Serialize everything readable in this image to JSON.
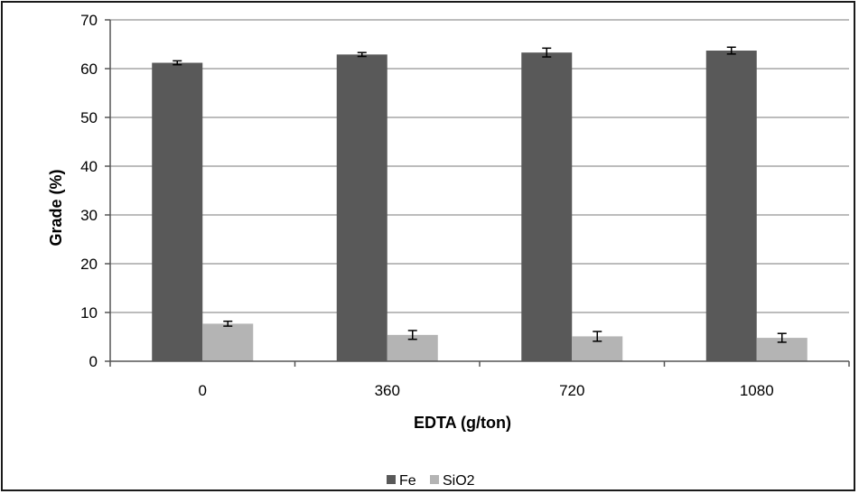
{
  "chart_data": {
    "type": "bar",
    "categories": [
      "0",
      "360",
      "720",
      "1080"
    ],
    "series": [
      {
        "name": "Fe",
        "values": [
          61.2,
          62.9,
          63.3,
          63.7
        ],
        "errors": [
          0.4,
          0.4,
          0.9,
          0.7
        ],
        "color": "#595959"
      },
      {
        "name": "SiO2",
        "values": [
          7.7,
          5.4,
          5.1,
          4.8
        ],
        "errors": [
          0.5,
          0.9,
          1.0,
          0.9
        ],
        "color": "#b4b4b4"
      }
    ],
    "title": "",
    "xlabel": "EDTA (g/ton)",
    "ylabel": "Grade (%)",
    "ylim": [
      0,
      70
    ],
    "yticks": [
      "0",
      "10",
      "20",
      "30",
      "40",
      "50",
      "60",
      "70"
    ],
    "grid": true,
    "legend_position": "bottom"
  }
}
